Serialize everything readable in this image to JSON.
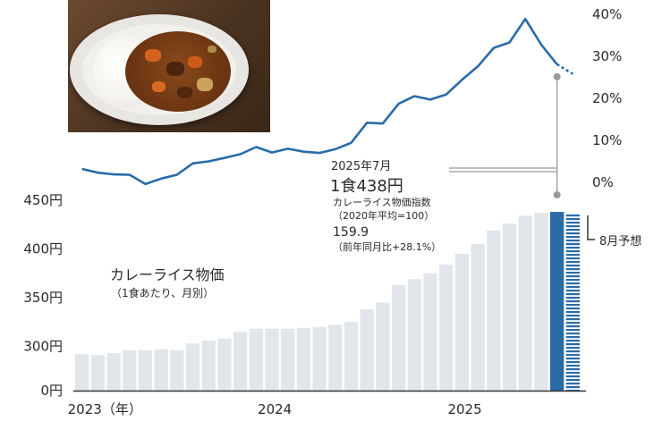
{
  "chart_data": {
    "type": "bar",
    "title": "カレーライス物価",
    "subtitle": "（1食あたり、月別）",
    "x_tick_labels": [
      "2023（年）",
      "2024",
      "2025"
    ],
    "bar_axis": {
      "ticks": [
        {
          "value": 450,
          "label": "450円"
        },
        {
          "value": 400,
          "label": "400円"
        },
        {
          "value": 350,
          "label": "350円"
        },
        {
          "value": 300,
          "label": "300円"
        },
        {
          "value": 0,
          "label": "0円"
        }
      ]
    },
    "line_axis": {
      "ticks": [
        {
          "value": 40,
          "label": "40%"
        },
        {
          "value": 30,
          "label": "30%"
        },
        {
          "value": 20,
          "label": "20%"
        },
        {
          "value": 10,
          "label": "10%"
        },
        {
          "value": 0,
          "label": "0%"
        }
      ]
    },
    "months": [
      "2023-01",
      "2023-02",
      "2023-03",
      "2023-04",
      "2023-05",
      "2023-06",
      "2023-07",
      "2023-08",
      "2023-09",
      "2023-10",
      "2023-11",
      "2023-12",
      "2024-01",
      "2024-02",
      "2024-03",
      "2024-04",
      "2024-05",
      "2024-06",
      "2024-07",
      "2024-08",
      "2024-09",
      "2024-10",
      "2024-11",
      "2024-12",
      "2025-01",
      "2025-02",
      "2025-03",
      "2025-04",
      "2025-05",
      "2025-06",
      "2025-07",
      "2025-08"
    ],
    "series": [
      {
        "type": "bar",
        "values": [
          292,
          291,
          293,
          296,
          296,
          297,
          296,
          303,
          306,
          308,
          315,
          318,
          318,
          318,
          319,
          320,
          322,
          325,
          338,
          345,
          363,
          369,
          375,
          384,
          395,
          405,
          419,
          426,
          434,
          437,
          438,
          437
        ],
        "color": "#e2e6ea"
      },
      {
        "type": "line",
        "values": [
          3.2,
          2.3,
          1.9,
          1.8,
          -0.4,
          0.9,
          1.8,
          4.5,
          5.0,
          5.8,
          6.7,
          8.4,
          7.1,
          8.0,
          7.3,
          7.0,
          7.9,
          9.4,
          14.2,
          14.0,
          18.7,
          20.5,
          19.7,
          20.9,
          24.4,
          27.6,
          32.0,
          33.3,
          38.9,
          32.8,
          28.1,
          25.8
        ],
        "color": "#2a6ba8"
      }
    ],
    "highlight": {
      "month": "2025-07",
      "color": "#2a6ba8"
    },
    "forecast": {
      "month": "2025-08",
      "label": "8月予想"
    },
    "annotation": {
      "date": "2025年7月",
      "price": "1食438円",
      "index_name": "カレーライス物価指数",
      "index_base": "（2020年平均=100）",
      "index_value": "159.9",
      "yoy": "（前年同月比+28.1%）"
    }
  }
}
